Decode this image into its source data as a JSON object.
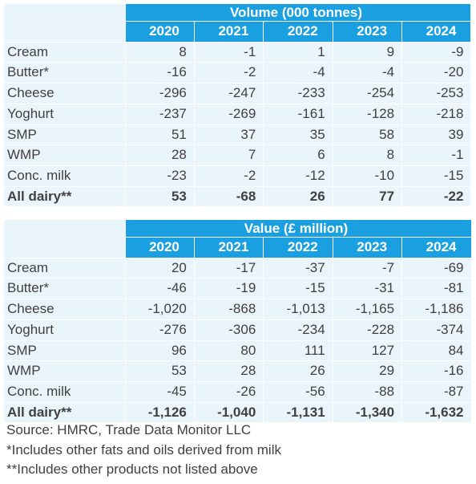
{
  "years": [
    "2020",
    "2021",
    "2022",
    "2023",
    "2024"
  ],
  "volume": {
    "title": "Volume (000 tonnes)",
    "rows": [
      {
        "label": "Cream",
        "values": [
          "8",
          "-1",
          "1",
          "9",
          "-9"
        ]
      },
      {
        "label": "Butter*",
        "values": [
          "-16",
          "-2",
          "-4",
          "-4",
          "-20"
        ]
      },
      {
        "label": "Cheese",
        "values": [
          "-296",
          "-247",
          "-233",
          "-254",
          "-253"
        ]
      },
      {
        "label": "Yoghurt",
        "values": [
          "-237",
          "-269",
          "-161",
          "-128",
          "-218"
        ]
      },
      {
        "label": "SMP",
        "values": [
          "51",
          "37",
          "35",
          "58",
          "39"
        ]
      },
      {
        "label": "WMP",
        "values": [
          "28",
          "7",
          "6",
          "8",
          "-1"
        ]
      },
      {
        "label": "Conc. milk",
        "values": [
          "-23",
          "-2",
          "-12",
          "-10",
          "-15"
        ]
      },
      {
        "label": "All dairy**",
        "values": [
          "53",
          "-68",
          "26",
          "77",
          "-22"
        ],
        "total": true
      }
    ]
  },
  "value": {
    "title": "Value (£ million)",
    "rows": [
      {
        "label": "Cream",
        "values": [
          "20",
          "-17",
          "-37",
          "-7",
          "-69"
        ]
      },
      {
        "label": "Butter*",
        "values": [
          "-46",
          "-19",
          "-15",
          "-31",
          "-81"
        ]
      },
      {
        "label": "Cheese",
        "values": [
          "-1,020",
          "-868",
          "-1,013",
          "-1,165",
          "-1,186"
        ]
      },
      {
        "label": "Yoghurt",
        "values": [
          "-276",
          "-306",
          "-234",
          "-228",
          "-374"
        ]
      },
      {
        "label": "SMP",
        "values": [
          "96",
          "80",
          "111",
          "127",
          "84"
        ]
      },
      {
        "label": "WMP",
        "values": [
          "53",
          "28",
          "26",
          "29",
          "-16"
        ]
      },
      {
        "label": "Conc. milk",
        "values": [
          "-45",
          "-26",
          "-56",
          "-88",
          "-87"
        ]
      },
      {
        "label": "All dairy**",
        "values": [
          "-1,126",
          "-1,040",
          "-1,131",
          "-1,340",
          "-1,632"
        ],
        "total": true
      }
    ]
  },
  "notes": [
    "Source: HMRC, Trade Data Monitor LLC",
    "*Includes other fats and oils derived from milk",
    "**Includes other products not listed above"
  ],
  "colors": {
    "header_bg": "#1aa0e0",
    "row_bg": "#eaf4fb",
    "text": "#404040"
  }
}
